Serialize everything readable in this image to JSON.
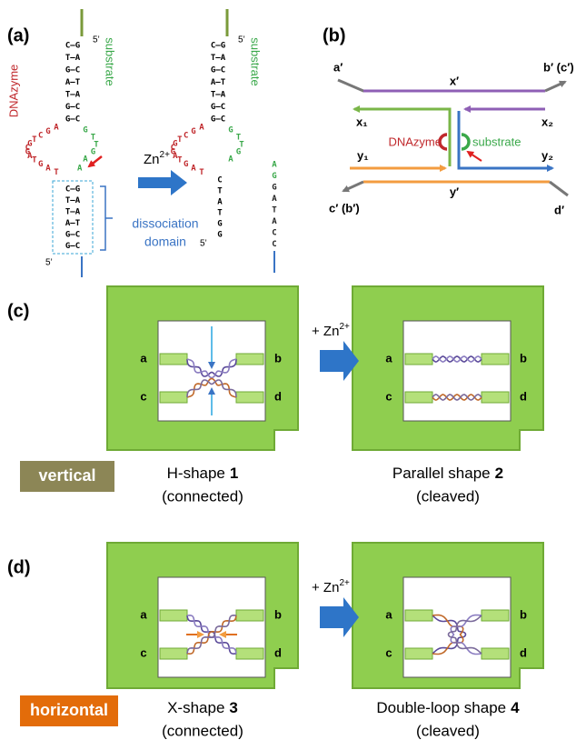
{
  "panel_a": {
    "label": "(a)",
    "dnazyme": "DNAzyme",
    "substrate": "substrate",
    "zn": "Zn",
    "zn_charge": "2+",
    "dissociation": "dissociation",
    "domain": "domain",
    "five_prime": "5’",
    "top_stem": [
      "C—G",
      "T—A",
      "G—C",
      "A—T",
      "T—A",
      "G—C",
      "G—C"
    ],
    "loop_dnazyme": [
      "A",
      "G",
      "C",
      "T",
      "G",
      "C",
      "G",
      "A",
      "T",
      "G",
      "A",
      "T"
    ],
    "loop_substrate": [
      "G",
      "T",
      "T",
      "G",
      "A"
    ],
    "cleavage_base": "A",
    "bottom_stem": [
      "C—G",
      "T—A",
      "T—A",
      "A—T",
      "G—C",
      "G—C"
    ],
    "cleaved_dnazyme": [
      "C",
      "T",
      "A",
      "T",
      "G",
      "G"
    ],
    "cleaved_substrate": [
      "A",
      "G",
      "G",
      "A",
      "T",
      "A",
      "C",
      "C"
    ]
  },
  "panel_b": {
    "label": "(b)",
    "a": "a′",
    "b": "b′ (c′)",
    "c": "c′ (b′)",
    "d": "d′",
    "x": "x′",
    "y": "y′",
    "x1": "x₁",
    "x2": "x₂",
    "y1": "y₁",
    "y2": "y₂",
    "dnazyme": "DNAzyme",
    "substrate": "substrate"
  },
  "panel_c": {
    "label": "(c)",
    "corners": [
      "a",
      "b",
      "c",
      "d"
    ],
    "zn": "+ Zn",
    "zn_charge": "2+",
    "badge": "vertical",
    "before": {
      "name": "H-shape",
      "number": "1",
      "state": "(connected)"
    },
    "after": {
      "name": "Parallel shape",
      "number": "2",
      "state": "(cleaved)"
    }
  },
  "panel_d": {
    "label": "(d)",
    "corners": [
      "a",
      "b",
      "c",
      "d"
    ],
    "zn": "+ Zn",
    "zn_charge": "2+",
    "badge": "horizontal",
    "before": {
      "name": "X-shape",
      "number": "3",
      "state": "(connected)"
    },
    "after": {
      "name": "Double-loop shape",
      "number": "4",
      "state": "(cleaved)"
    }
  }
}
